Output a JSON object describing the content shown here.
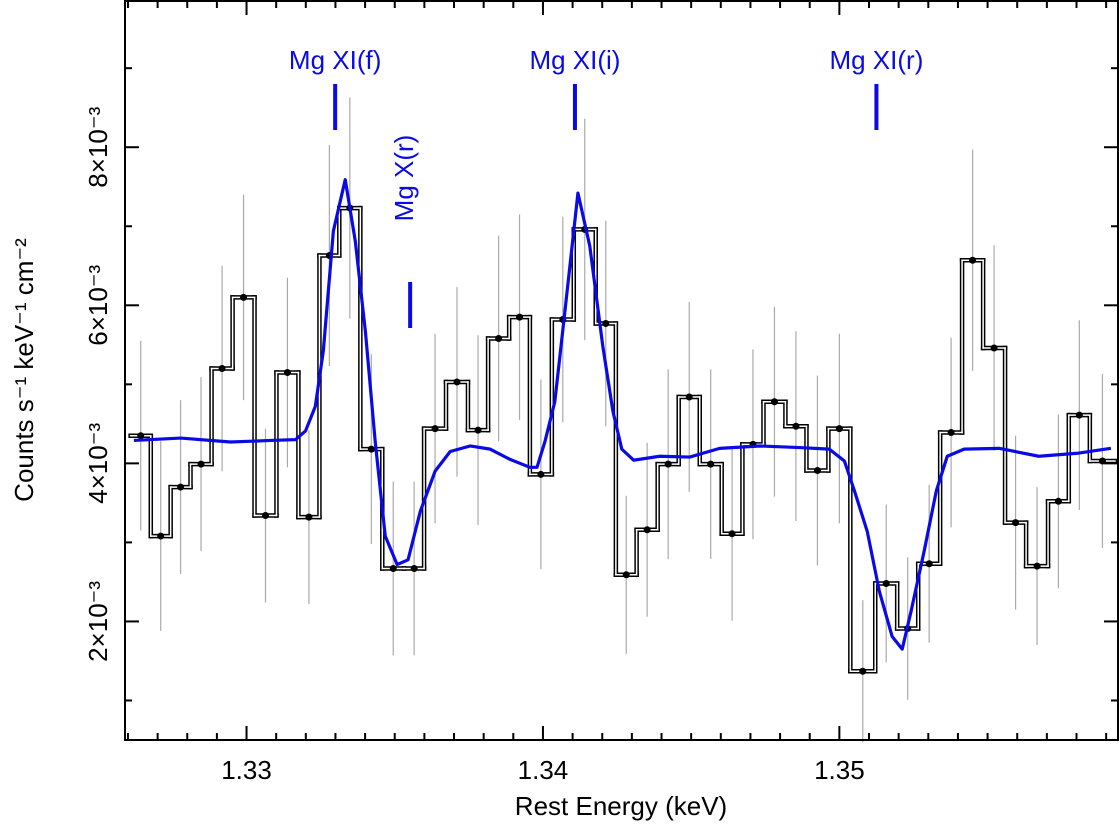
{
  "chart_data": {
    "type": "histogram",
    "xlabel": "Rest Energy (keV)",
    "ylabel": "Counts s⁻¹ keV⁻¹ cm⁻²",
    "xlim": [
      1.3259,
      1.3594
    ],
    "ylim": [
      0.0005,
      0.00985
    ],
    "xticks": [
      1.33,
      1.34,
      1.35
    ],
    "yticks": [
      {
        "value": 0.002,
        "label": "2×10⁻³"
      },
      {
        "value": 0.004,
        "label": "4×10⁻³"
      },
      {
        "value": 0.006,
        "label": "6×10⁻³"
      },
      {
        "value": 0.008,
        "label": "8×10⁻³"
      }
    ],
    "xminorticks": [
      1.326,
      1.327,
      1.328,
      1.329,
      1.331,
      1.332,
      1.333,
      1.334,
      1.335,
      1.336,
      1.337,
      1.338,
      1.339,
      1.341,
      1.342,
      1.343,
      1.344,
      1.345,
      1.346,
      1.347,
      1.348,
      1.349,
      1.351,
      1.352,
      1.353,
      1.354,
      1.355,
      1.356,
      1.357,
      1.358,
      1.359
    ],
    "yminorticks": [
      0.001,
      0.003,
      0.005,
      0.007,
      0.009
    ],
    "color": "#000000",
    "error_color": "#aaaaaa",
    "bins": [
      1.32609,
      1.32677,
      1.32744,
      1.32811,
      1.32882,
      1.32953,
      1.33027,
      1.33101,
      1.33175,
      1.33246,
      1.33313,
      1.33384,
      1.33458,
      1.33532,
      1.33599,
      1.33673,
      1.33747,
      1.33815,
      1.33886,
      1.33956,
      1.3403,
      1.34104,
      1.34178,
      1.34246,
      1.34316,
      1.34387,
      1.34458,
      1.34529,
      1.34603,
      1.34673,
      1.34744,
      1.34818,
      1.34889,
      1.34963,
      1.35037,
      1.35121,
      1.35195,
      1.35266,
      1.3534,
      1.35414,
      1.35485,
      1.35559,
      1.3563,
      1.35704,
      1.35774,
      1.35845,
      1.3593
    ],
    "values": [
      0.00435,
      0.00308,
      0.0037,
      0.00399,
      0.0052,
      0.0061,
      0.00334,
      0.00515,
      0.00332,
      0.00663,
      0.00723,
      0.00418,
      0.00267,
      0.00267,
      0.00444,
      0.00503,
      0.00442,
      0.00558,
      0.00585,
      0.00386,
      0.00582,
      0.00696,
      0.00577,
      0.00259,
      0.00316,
      0.00399,
      0.00484,
      0.00399,
      0.00311,
      0.00424,
      0.00478,
      0.00447,
      0.00391,
      0.00444,
      0.00137,
      0.00248,
      0.00191,
      0.00273,
      0.00439,
      0.00657,
      0.00546,
      0.00325,
      0.0027,
      0.00352,
      0.00461,
      0.00403
    ],
    "errors": [
      0.0012,
      0.0012,
      0.0011,
      0.0011,
      0.0013,
      0.0013,
      0.0011,
      0.0012,
      0.0011,
      0.0014,
      0.0014,
      0.0012,
      0.0011,
      0.0011,
      0.0012,
      0.0012,
      0.0012,
      0.0013,
      0.0013,
      0.0012,
      0.0013,
      0.0014,
      0.0013,
      0.001,
      0.0011,
      0.0012,
      0.0012,
      0.0012,
      0.0011,
      0.0012,
      0.0012,
      0.0012,
      0.0012,
      0.0012,
      0.0009,
      0.001,
      0.0009,
      0.001,
      0.0012,
      0.0014,
      0.0013,
      0.0011,
      0.001,
      0.0011,
      0.0012,
      0.0011
    ],
    "model": {
      "color": "#0a0ae6",
      "x": [
        1.3262,
        1.32778,
        1.32946,
        1.33081,
        1.33165,
        1.33199,
        1.33232,
        1.33259,
        1.33293,
        1.33333,
        1.33367,
        1.33401,
        1.33434,
        1.33468,
        1.33508,
        1.33545,
        1.33586,
        1.33636,
        1.33687,
        1.33754,
        1.33822,
        1.33889,
        1.33956,
        1.3398,
        1.34007,
        1.3404,
        1.34074,
        1.34118,
        1.34158,
        1.34202,
        1.34236,
        1.34266,
        1.34306,
        1.34394,
        1.34495,
        1.34596,
        1.34731,
        1.34865,
        1.34966,
        1.35017,
        1.35051,
        1.35094,
        1.35135,
        1.35178,
        1.35212,
        1.35242,
        1.35286,
        1.35327,
        1.35364,
        1.35421,
        1.35539,
        1.35673,
        1.35808,
        1.35916
      ],
      "values": [
        0.00429,
        0.00432,
        0.00427,
        0.00429,
        0.0043,
        0.00441,
        0.00472,
        0.00542,
        0.00694,
        0.00759,
        0.00681,
        0.00567,
        0.00428,
        0.00308,
        0.00272,
        0.00278,
        0.00339,
        0.0039,
        0.00415,
        0.00422,
        0.00418,
        0.00405,
        0.00395,
        0.00395,
        0.00428,
        0.00478,
        0.00592,
        0.00742,
        0.00675,
        0.00548,
        0.00466,
        0.00418,
        0.00404,
        0.00409,
        0.00408,
        0.00419,
        0.00422,
        0.0042,
        0.00418,
        0.00403,
        0.00365,
        0.00314,
        0.00238,
        0.00181,
        0.00165,
        0.00213,
        0.00289,
        0.00365,
        0.00409,
        0.00418,
        0.00419,
        0.00409,
        0.00413,
        0.00419
      ]
    },
    "annotations": [
      {
        "label": "Mg XI(f)",
        "x": 1.33299
      },
      {
        "label": "Mg X(r)",
        "x": 1.33552,
        "rotated": true
      },
      {
        "label": "Mg XI(i)",
        "x": 1.34108
      },
      {
        "label": "Mg XI(r)",
        "x": 1.35125
      }
    ]
  }
}
